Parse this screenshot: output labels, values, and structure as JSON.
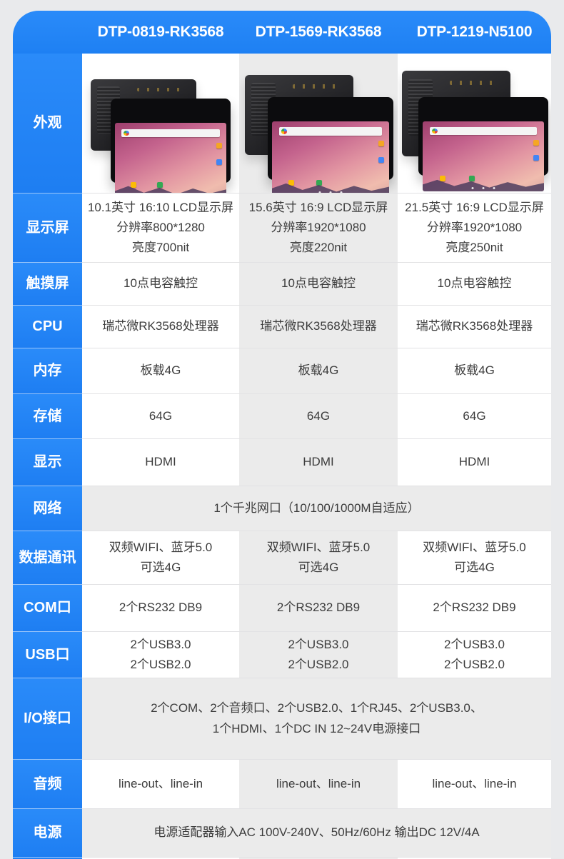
{
  "colors": {
    "accent_blue": "#2186f8",
    "page_bg": "#e9eaec",
    "alt_column_bg": "#ebebeb"
  },
  "header": {
    "model_1": "DTP-0819-RK3568",
    "model_2": "DTP-1569-RK3568",
    "model_3": "DTP-1219-N5100"
  },
  "rows": {
    "appearance": {
      "label": "外观"
    },
    "display": {
      "label": "显示屏",
      "c1": "10.1英寸 16:10 LCD显示屏\n分辨率800*1280\n亮度700nit",
      "c2": "15.6英寸 16:9 LCD显示屏\n分辨率1920*1080\n亮度220nit",
      "c3": "21.5英寸 16:9 LCD显示屏\n分辨率1920*1080\n亮度250nit"
    },
    "touch": {
      "label": "触摸屏",
      "c1": "10点电容触控",
      "c2": "10点电容触控",
      "c3": "10点电容触控"
    },
    "cpu": {
      "label": "CPU",
      "c1": "瑞芯微RK3568处理器",
      "c2": "瑞芯微RK3568处理器",
      "c3": "瑞芯微RK3568处理器"
    },
    "memory": {
      "label": "内存",
      "c1": "板载4G",
      "c2": "板载4G",
      "c3": "板载4G"
    },
    "storage": {
      "label": "存储",
      "c1": "64G",
      "c2": "64G",
      "c3": "64G"
    },
    "video_out": {
      "label": "显示",
      "c1": "HDMI",
      "c2": "HDMI",
      "c3": "HDMI"
    },
    "network": {
      "label": "网络",
      "span": "1个千兆网口（10/100/1000M自适应）"
    },
    "data_comm": {
      "label": "数据通讯",
      "c1": "双频WIFI、蓝牙5.0\n可选4G",
      "c2": "双频WIFI、蓝牙5.0\n可选4G",
      "c3": "双频WIFI、蓝牙5.0\n可选4G"
    },
    "com_port": {
      "label": "COM口",
      "c1": "2个RS232 DB9",
      "c2": "2个RS232 DB9",
      "c3": "2个RS232 DB9"
    },
    "usb_port": {
      "label": "USB口",
      "c1": "2个USB3.0\n2个USB2.0",
      "c2": "2个USB3.0\n2个USB2.0",
      "c3": "2个USB3.0\n2个USB2.0"
    },
    "io": {
      "label": "I/O接口",
      "span": "2个COM、2个音频口、2个USB2.0、1个RJ45、2个USB3.0、\n1个HDMI、1个DC IN 12~24V电源接口"
    },
    "audio": {
      "label": "音频",
      "c1": "line-out、line-in",
      "c2": "line-out、line-in",
      "c3": "line-out、line-in"
    },
    "power": {
      "label": "电源",
      "span": "电源适配器输入AC 100V-240V、50Hz/60Hz 输出DC 12V/4A"
    }
  }
}
